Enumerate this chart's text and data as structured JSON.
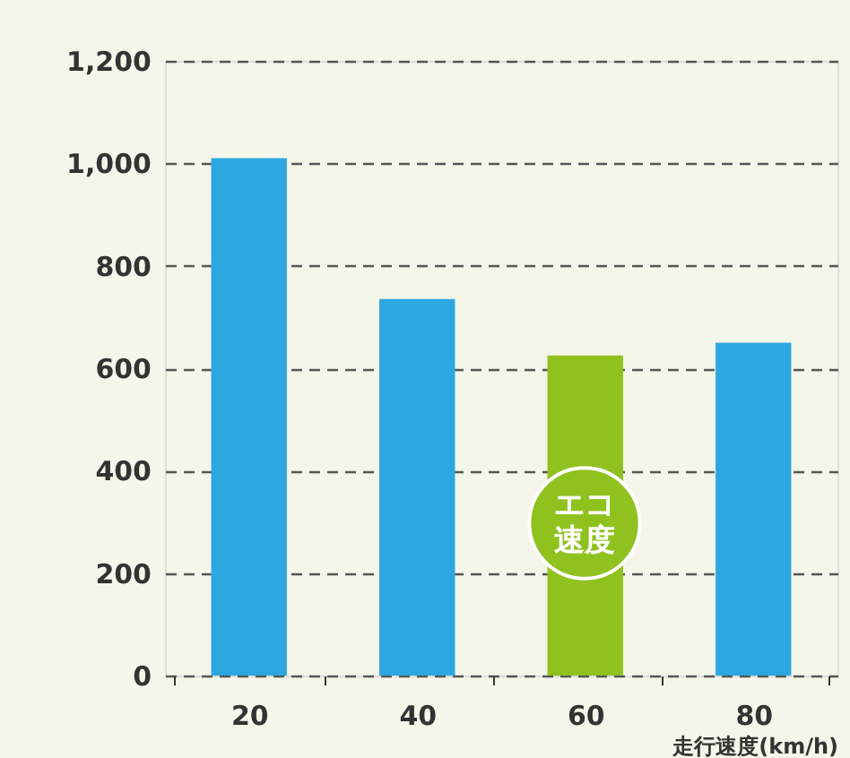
{
  "chart_data": {
    "type": "bar",
    "xlabel": "走行速度(km/h)",
    "categories": [
      "20",
      "40",
      "60",
      "80"
    ],
    "values": [
      1010,
      735,
      625,
      650
    ],
    "colors": [
      "#2ea6e0",
      "#2ea6e0",
      "#8fc21f",
      "#2ea6e0"
    ],
    "ylim": [
      0,
      1200
    ],
    "yticks": [
      0,
      200,
      400,
      600,
      800,
      {
        "value": 1000,
        "label": "1,000"
      },
      {
        "value": 1200,
        "label": "1,200"
      }
    ],
    "grid": "y",
    "annotations": [
      "エコ速度"
    ]
  }
}
